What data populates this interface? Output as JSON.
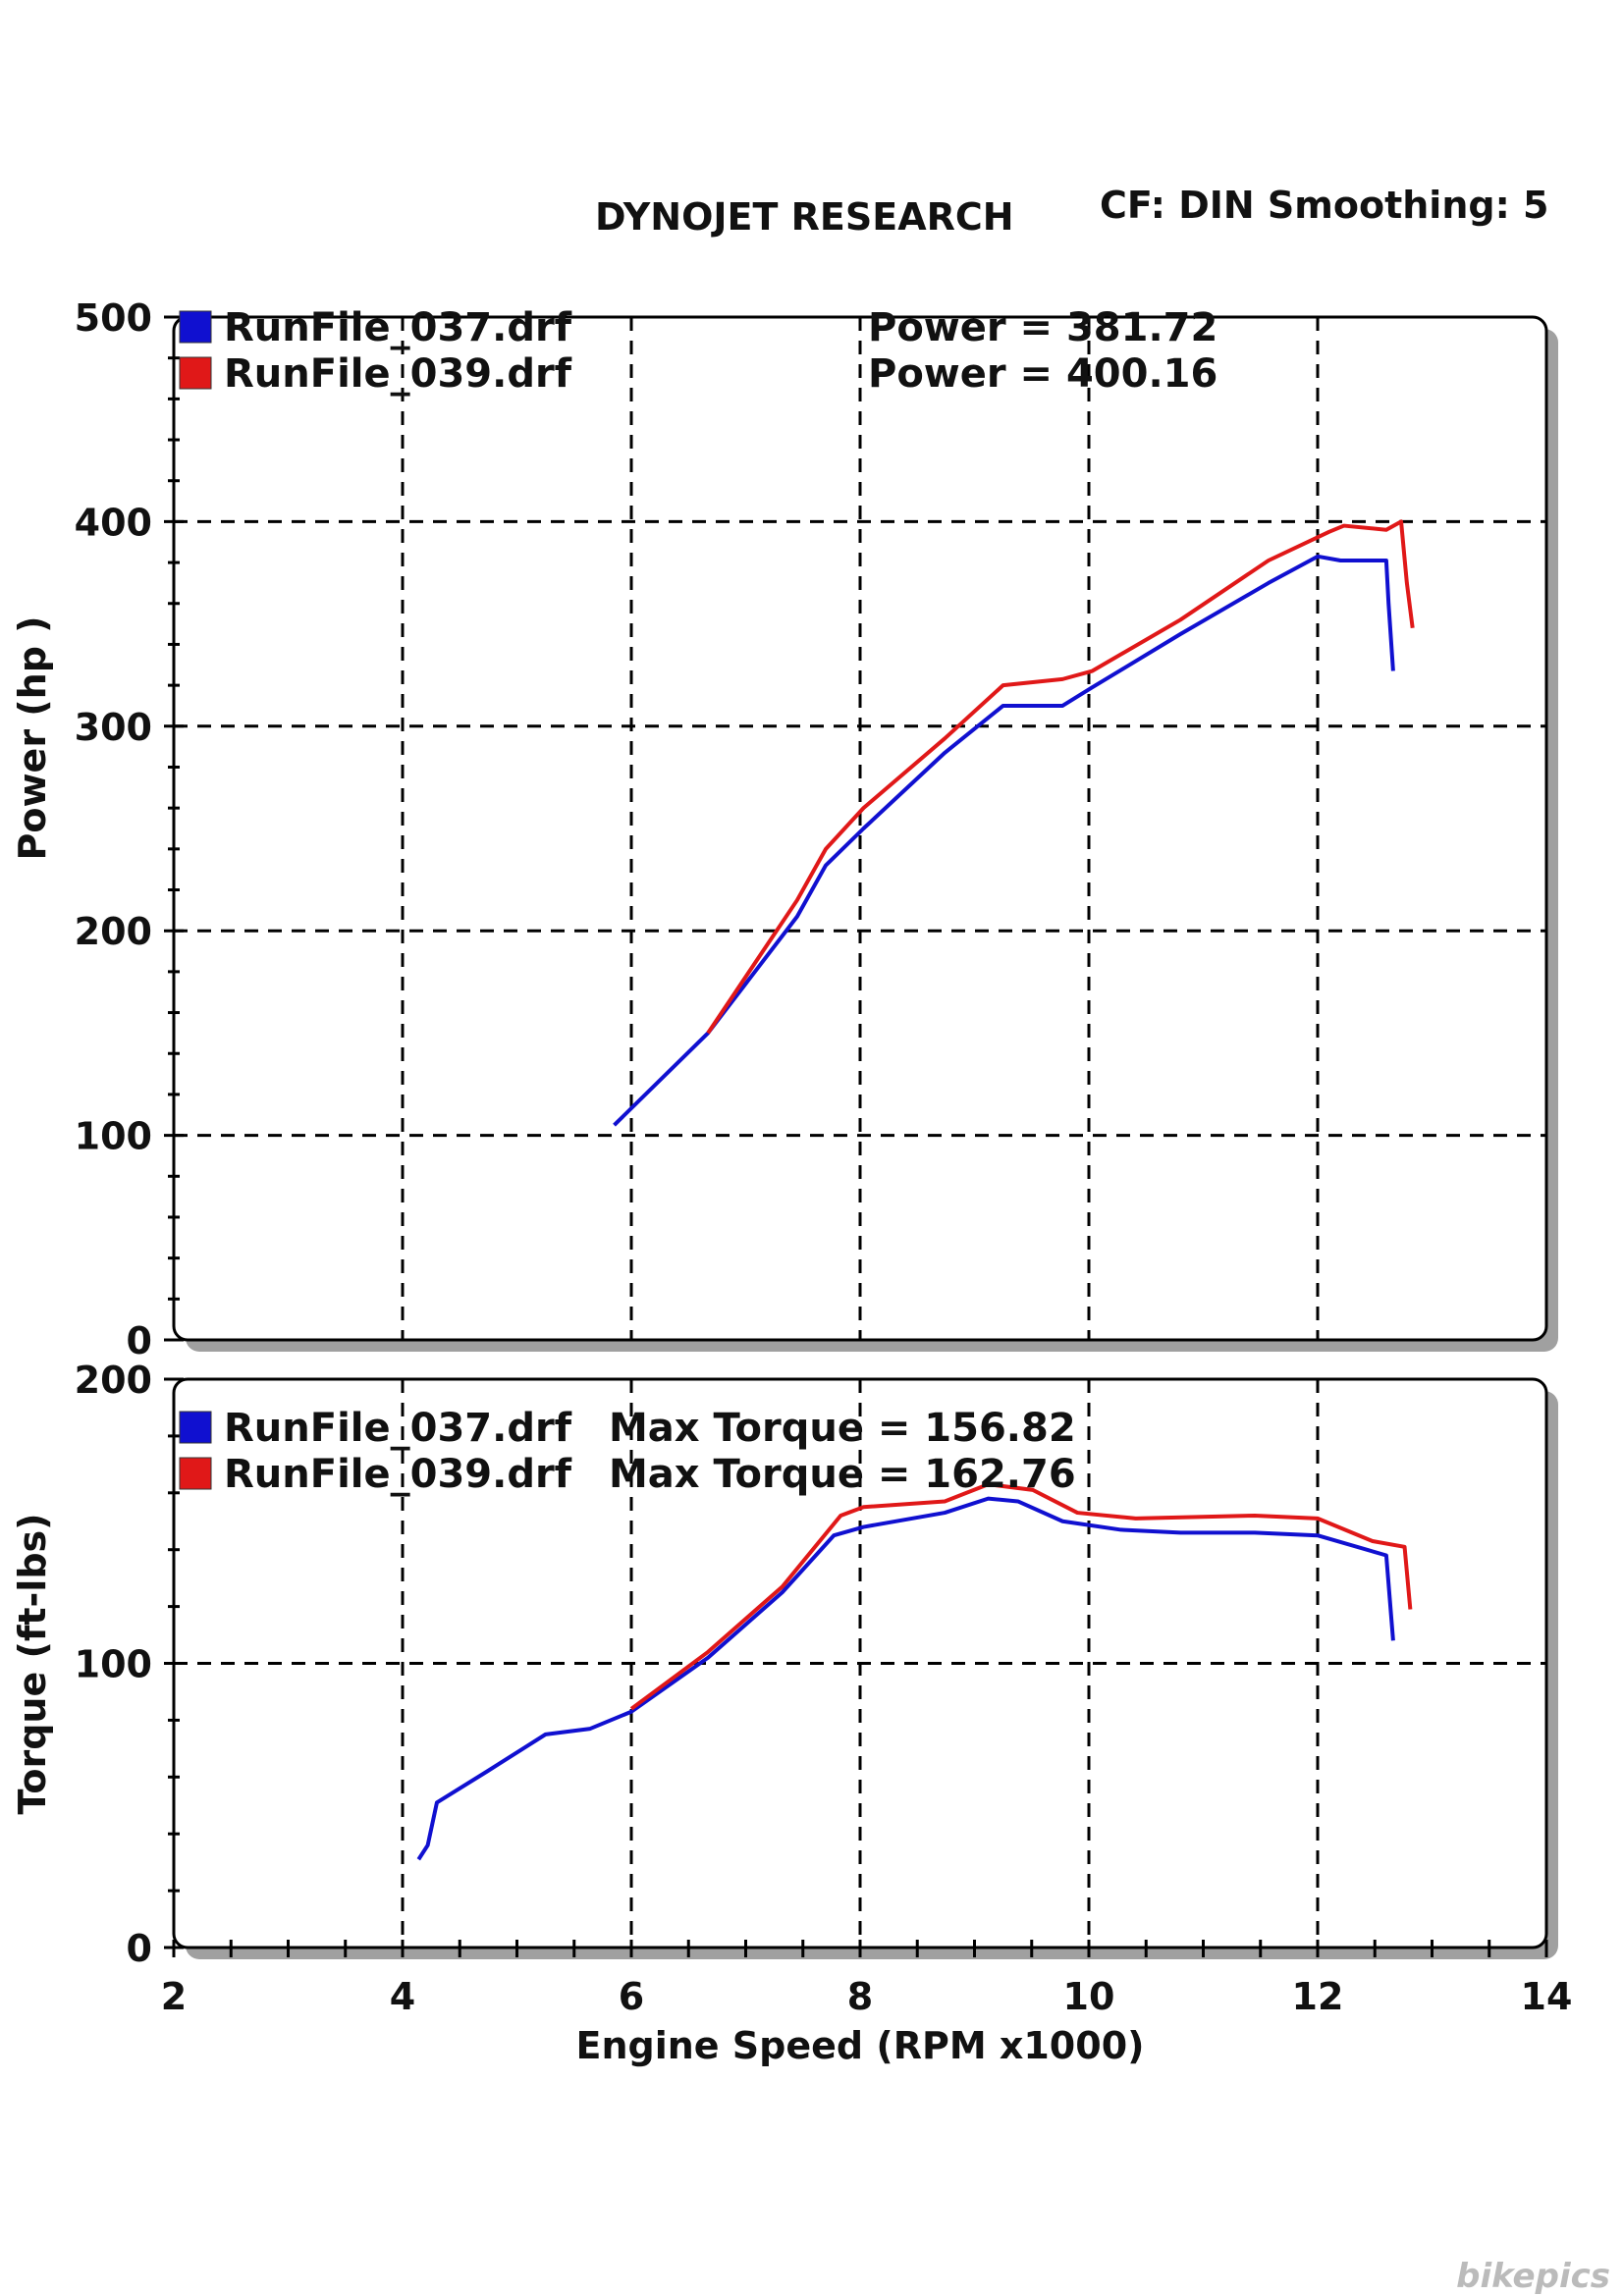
{
  "header": {
    "title": "DYNOJET RESEARCH",
    "settings": "CF: DIN  Smoothing: 5"
  },
  "watermark": "bikepics",
  "colors": {
    "run037": "#1010d0",
    "run039": "#e01818",
    "grid": "#000000",
    "shadow": "#a0a0a0"
  },
  "chart_data": [
    {
      "type": "line",
      "title": "Power",
      "ylabel": "Power (hp )",
      "xlabel": "Engine Speed (RPM x1000)",
      "xlim": [
        2,
        14
      ],
      "ylim": [
        0,
        500
      ],
      "yticks": [
        0,
        100,
        200,
        300,
        400,
        500
      ],
      "xgrid": [
        4,
        6,
        8,
        10,
        12
      ],
      "ygrid": [
        100,
        200,
        300,
        400
      ],
      "legend": [
        {
          "name": "RunFile_037.drf",
          "stat": "Power = 381.72",
          "color_key": "run037"
        },
        {
          "name": "RunFile_039.drf",
          "stat": "Power = 400.16",
          "color_key": "run039"
        }
      ],
      "series": [
        {
          "name": "RunFile_037.drf",
          "x": [
            5.85,
            6.67,
            7.45,
            7.7,
            8.03,
            8.74,
            9.25,
            9.77,
            10.03,
            10.8,
            11.57,
            12.0,
            12.2,
            12.6,
            12.62,
            12.66
          ],
          "y": [
            105,
            150,
            207,
            232,
            250,
            287,
            310,
            310,
            319,
            345,
            370,
            383,
            381,
            381,
            360,
            327
          ]
        },
        {
          "name": "RunFile_039.drf",
          "x": [
            6.67,
            7.45,
            7.7,
            8.03,
            8.74,
            9.25,
            9.77,
            10.03,
            10.8,
            11.57,
            12.1,
            12.23,
            12.6,
            12.73,
            12.78,
            12.83
          ],
          "y": [
            150,
            215,
            240,
            260,
            294,
            320,
            323,
            327,
            352,
            381,
            395,
            398,
            396,
            400,
            370,
            348
          ]
        }
      ]
    },
    {
      "type": "line",
      "title": "Torque",
      "ylabel": "Torque (ft-lbs)",
      "xlabel": "Engine Speed (RPM x1000)",
      "xlim": [
        2,
        14
      ],
      "ylim": [
        0,
        200
      ],
      "yticks": [
        0,
        100,
        200
      ],
      "xticks": [
        2,
        4,
        6,
        8,
        10,
        12,
        14
      ],
      "xgrid": [
        4,
        6,
        8,
        10,
        12
      ],
      "ygrid": [
        100
      ],
      "legend": [
        {
          "name": "RunFile_037.drf",
          "stat": "Max Torque = 156.82",
          "color_key": "run037"
        },
        {
          "name": "RunFile_039.drf",
          "stat": "Max Torque = 162.76",
          "color_key": "run039"
        }
      ],
      "series": [
        {
          "name": "RunFile_037.drf",
          "x": [
            4.14,
            4.22,
            4.3,
            4.74,
            5.25,
            5.64,
            6.0,
            6.67,
            7.32,
            7.77,
            8.03,
            8.74,
            9.12,
            9.38,
            9.77,
            10.28,
            10.8,
            11.45,
            12.0,
            12.6,
            12.66
          ],
          "y": [
            31,
            36,
            51,
            62,
            75,
            77,
            83,
            102,
            125,
            145,
            148,
            153,
            158,
            157,
            150,
            147,
            146,
            146,
            145,
            138,
            108
          ]
        },
        {
          "name": "RunFile_039.drf",
          "x": [
            6.0,
            6.67,
            7.32,
            7.83,
            8.03,
            8.74,
            9.12,
            9.51,
            9.9,
            10.41,
            11.45,
            12.0,
            12.48,
            12.76,
            12.81
          ],
          "y": [
            84,
            104,
            127,
            152,
            155,
            157,
            163,
            161,
            153,
            151,
            152,
            151,
            143,
            141,
            119
          ]
        }
      ]
    }
  ]
}
